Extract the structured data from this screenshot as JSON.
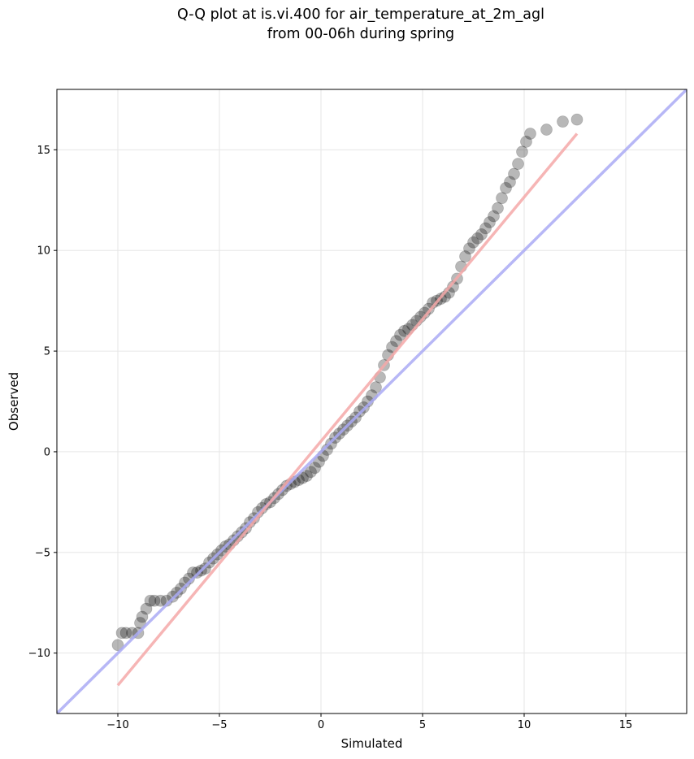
{
  "chart_data": {
    "type": "scatter",
    "title": "Q-Q plot at is.vi.400 for air_temperature_at_2m_agl",
    "subtitle": "from 00-06h during spring",
    "xlabel": "Simulated",
    "ylabel": "Observed",
    "xlim": [
      -13,
      18
    ],
    "ylim": [
      -13,
      18
    ],
    "xticks": [
      -10,
      -5,
      0,
      5,
      10,
      15
    ],
    "yticks": [
      -10,
      -5,
      0,
      5,
      10,
      15
    ],
    "xtick_labels": [
      "−10",
      "−5",
      "0",
      "5",
      "10",
      "15"
    ],
    "ytick_labels": [
      "−10",
      "−5",
      "0",
      "5",
      "10",
      "15"
    ],
    "grid": true,
    "identity_line": {
      "color": "#aaaaf5",
      "from": [
        -13,
        -13
      ],
      "to": [
        18,
        18
      ]
    },
    "fit_line": {
      "color": "#f5a8a8",
      "from": [
        -10,
        -11.6
      ],
      "to": [
        12.6,
        15.8
      ]
    },
    "points": [
      [
        -10.0,
        -9.6
      ],
      [
        -9.8,
        -9.0
      ],
      [
        -9.6,
        -9.0
      ],
      [
        -9.3,
        -9.0
      ],
      [
        -9.0,
        -9.0
      ],
      [
        -8.9,
        -8.5
      ],
      [
        -8.8,
        -8.2
      ],
      [
        -8.6,
        -7.8
      ],
      [
        -8.4,
        -7.4
      ],
      [
        -8.2,
        -7.4
      ],
      [
        -7.9,
        -7.4
      ],
      [
        -7.6,
        -7.4
      ],
      [
        -7.3,
        -7.2
      ],
      [
        -7.1,
        -7.0
      ],
      [
        -6.9,
        -6.8
      ],
      [
        -6.7,
        -6.5
      ],
      [
        -6.5,
        -6.3
      ],
      [
        -6.3,
        -6.0
      ],
      [
        -6.1,
        -6.0
      ],
      [
        -5.9,
        -5.9
      ],
      [
        -5.7,
        -5.8
      ],
      [
        -5.5,
        -5.5
      ],
      [
        -5.3,
        -5.3
      ],
      [
        -5.1,
        -5.1
      ],
      [
        -4.9,
        -4.9
      ],
      [
        -4.7,
        -4.7
      ],
      [
        -4.5,
        -4.6
      ],
      [
        -4.3,
        -4.4
      ],
      [
        -4.1,
        -4.2
      ],
      [
        -3.9,
        -4.0
      ],
      [
        -3.7,
        -3.8
      ],
      [
        -3.5,
        -3.5
      ],
      [
        -3.3,
        -3.3
      ],
      [
        -3.1,
        -3.0
      ],
      [
        -2.9,
        -2.8
      ],
      [
        -2.7,
        -2.6
      ],
      [
        -2.5,
        -2.5
      ],
      [
        -2.3,
        -2.3
      ],
      [
        -2.1,
        -2.1
      ],
      [
        -1.9,
        -1.9
      ],
      [
        -1.7,
        -1.7
      ],
      [
        -1.5,
        -1.6
      ],
      [
        -1.3,
        -1.5
      ],
      [
        -1.1,
        -1.4
      ],
      [
        -0.9,
        -1.3
      ],
      [
        -0.7,
        -1.2
      ],
      [
        -0.5,
        -1.0
      ],
      [
        -0.3,
        -0.8
      ],
      [
        -0.1,
        -0.5
      ],
      [
        0.1,
        -0.2
      ],
      [
        0.3,
        0.1
      ],
      [
        0.5,
        0.4
      ],
      [
        0.7,
        0.7
      ],
      [
        0.9,
        0.9
      ],
      [
        1.1,
        1.1
      ],
      [
        1.3,
        1.3
      ],
      [
        1.5,
        1.5
      ],
      [
        1.7,
        1.7
      ],
      [
        1.9,
        2.0
      ],
      [
        2.1,
        2.2
      ],
      [
        2.3,
        2.5
      ],
      [
        2.5,
        2.8
      ],
      [
        2.7,
        3.2
      ],
      [
        2.9,
        3.7
      ],
      [
        3.1,
        4.3
      ],
      [
        3.3,
        4.8
      ],
      [
        3.5,
        5.2
      ],
      [
        3.7,
        5.5
      ],
      [
        3.9,
        5.8
      ],
      [
        4.1,
        6.0
      ],
      [
        4.3,
        6.1
      ],
      [
        4.5,
        6.3
      ],
      [
        4.7,
        6.5
      ],
      [
        4.9,
        6.7
      ],
      [
        5.1,
        6.9
      ],
      [
        5.3,
        7.1
      ],
      [
        5.5,
        7.4
      ],
      [
        5.7,
        7.5
      ],
      [
        5.9,
        7.6
      ],
      [
        6.1,
        7.7
      ],
      [
        6.3,
        7.9
      ],
      [
        6.5,
        8.2
      ],
      [
        6.7,
        8.6
      ],
      [
        6.9,
        9.2
      ],
      [
        7.1,
        9.7
      ],
      [
        7.3,
        10.1
      ],
      [
        7.5,
        10.4
      ],
      [
        7.7,
        10.6
      ],
      [
        7.9,
        10.8
      ],
      [
        8.1,
        11.1
      ],
      [
        8.3,
        11.4
      ],
      [
        8.5,
        11.7
      ],
      [
        8.7,
        12.1
      ],
      [
        8.9,
        12.6
      ],
      [
        9.1,
        13.1
      ],
      [
        9.3,
        13.4
      ],
      [
        9.5,
        13.8
      ],
      [
        9.7,
        14.3
      ],
      [
        9.9,
        14.9
      ],
      [
        10.1,
        15.4
      ],
      [
        10.3,
        15.8
      ],
      [
        11.1,
        16.0
      ],
      [
        11.9,
        16.4
      ],
      [
        12.6,
        16.5
      ]
    ]
  }
}
